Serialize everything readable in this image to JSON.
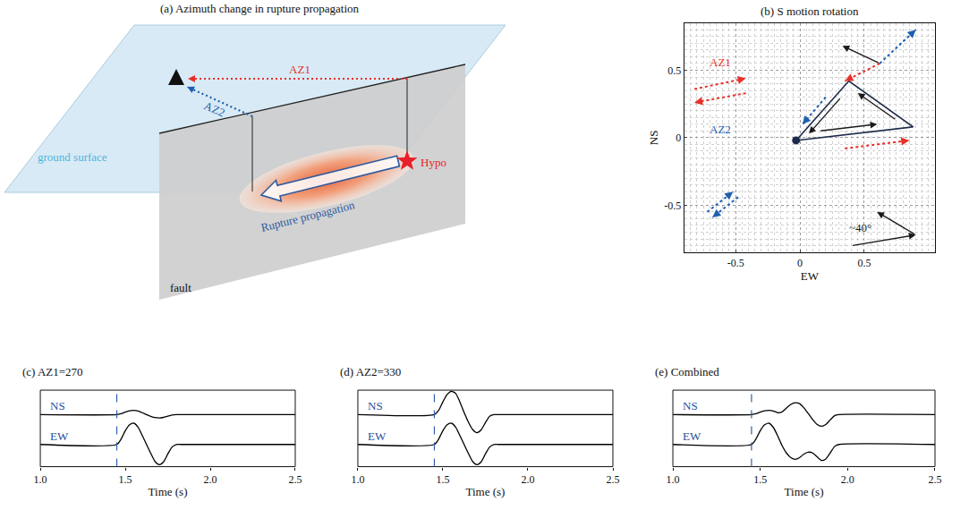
{
  "chart_data": [
    {
      "type": "diagram",
      "title": "(a) Azimuth change in rupture propagation",
      "labels": {
        "surface": "ground surface",
        "fault": "fault",
        "hypocenter": "Hypo",
        "rupture": "Rupture propagation",
        "az1": "AZ1",
        "az2": "AZ2"
      }
    },
    {
      "type": "vector",
      "title": "(b) S motion rotation",
      "x_label": "EW",
      "y_label": "NS",
      "xlim": [
        -0.9,
        1.05
      ],
      "ylim": [
        -0.85,
        0.85
      ],
      "xticks": [
        -0.5,
        0,
        0.5
      ],
      "yticks": [
        -0.5,
        0,
        0.5
      ],
      "grid": true,
      "path": {
        "x": [
          -0.03,
          0.88,
          0.38,
          -0.03
        ],
        "y": [
          -0.02,
          0.08,
          0.42,
          -0.02
        ],
        "color": "#1c2b4a",
        "marker": "circle"
      },
      "arrows": [
        {
          "from": [
            0.15,
            0.05
          ],
          "to": [
            0.6,
            0.1
          ],
          "color": "#1a1a1a",
          "line_style": "solid"
        },
        {
          "from": [
            0.75,
            0.13
          ],
          "to": [
            0.45,
            0.33
          ],
          "color": "#1a1a1a",
          "line_style": "solid"
        },
        {
          "from": [
            0.32,
            0.3
          ],
          "to": [
            0.07,
            0.03
          ],
          "color": "#1a1a1a",
          "line_style": "solid"
        },
        {
          "from": [
            0.62,
            0.55
          ],
          "to": [
            0.33,
            0.68
          ],
          "color": "#1a1a1a",
          "line_style": "solid"
        },
        {
          "from": [
            0.62,
            0.55
          ],
          "to": [
            0.35,
            0.42
          ],
          "color": "#e8302a",
          "line_style": "dotted"
        },
        {
          "from": [
            0.62,
            0.55
          ],
          "to": [
            0.9,
            0.8
          ],
          "color": "#1f5fb0",
          "line_style": "dotted"
        },
        {
          "from": [
            0.2,
            0.3
          ],
          "to": [
            0.02,
            0.1
          ],
          "color": "#1f5fb0",
          "line_style": "dotted"
        },
        {
          "from": [
            0.35,
            -0.08
          ],
          "to": [
            0.85,
            -0.02
          ],
          "color": "#e8302a",
          "line_style": "dotted"
        },
        {
          "from": [
            -0.82,
            0.36
          ],
          "to": [
            -0.42,
            0.44
          ],
          "color": "#e8302a",
          "line_style": "dotted"
        },
        {
          "from": [
            -0.42,
            0.33
          ],
          "to": [
            -0.82,
            0.26
          ],
          "color": "#e8302a",
          "line_style": "dotted"
        },
        {
          "from": [
            -0.72,
            -0.55
          ],
          "to": [
            -0.52,
            -0.4
          ],
          "color": "#1f5fb0",
          "line_style": "dotted"
        },
        {
          "from": [
            -0.48,
            -0.44
          ],
          "to": [
            -0.68,
            -0.59
          ],
          "color": "#1f5fb0",
          "line_style": "dotted"
        },
        {
          "from": [
            0.4,
            -0.8
          ],
          "to": [
            0.9,
            -0.72
          ],
          "color": "#1a1a1a",
          "line_style": "solid"
        },
        {
          "from": [
            0.9,
            -0.72
          ],
          "to": [
            0.6,
            -0.55
          ],
          "color": "#1a1a1a",
          "line_style": "solid"
        }
      ],
      "annotations": [
        {
          "text": "AZ1",
          "x": -0.62,
          "y": 0.56,
          "color": "#e8302a"
        },
        {
          "text": "AZ2",
          "x": -0.62,
          "y": 0.06,
          "color": "#1f5fb0"
        },
        {
          "text": "~40°",
          "x": 0.47,
          "y": -0.67,
          "color": "#1a1a1a"
        }
      ]
    },
    {
      "type": "line",
      "title": "(c) AZ1=270",
      "x_label": "Time (s)",
      "xlim": [
        1.0,
        2.5
      ],
      "xticks": [
        {
          "value": 1.0,
          "label": "1.0"
        },
        {
          "value": 1.5,
          "label": "1.5"
        },
        {
          "value": 2.0,
          "label": "2.0"
        },
        {
          "value": 2.5,
          "label": "2.5"
        }
      ],
      "ylim": [
        -1.2,
        1.2
      ],
      "tick_labels": "x",
      "onset_time": 1.45,
      "x": [
        1.0,
        1.45,
        1.475,
        1.5,
        1.525,
        1.55,
        1.575,
        1.6,
        1.625,
        1.65,
        1.675,
        1.7,
        1.725,
        1.75,
        1.775,
        1.8,
        1.825,
        1.85,
        1.875,
        1.9,
        1.925,
        1.95,
        2.5
      ],
      "series": [
        {
          "name": "NS",
          "color": "#000000",
          "values": [
            0,
            0,
            0.04,
            0.12,
            0.18,
            0.2,
            0.17,
            0.09,
            0,
            -0.08,
            -0.14,
            -0.16,
            -0.13,
            -0.07,
            -0.02,
            0,
            0,
            0,
            0,
            0,
            0,
            0,
            0
          ]
        },
        {
          "name": "EW",
          "color": "#000000",
          "values": [
            0,
            0,
            0.25,
            0.65,
            0.93,
            1.0,
            0.82,
            0.42,
            0,
            -0.42,
            -0.8,
            -0.95,
            -0.82,
            -0.45,
            -0.12,
            0,
            0,
            0,
            0,
            0,
            0,
            0,
            0
          ]
        }
      ]
    },
    {
      "type": "line",
      "title": "(d) AZ2=330",
      "x_label": "Time (s)",
      "xlim": [
        1.0,
        2.5
      ],
      "xticks": [
        {
          "value": 1.0,
          "label": "1.0"
        },
        {
          "value": 1.5,
          "label": "1.5"
        },
        {
          "value": 2.0,
          "label": "2.0"
        },
        {
          "value": 2.5,
          "label": "2.5"
        }
      ],
      "ylim": [
        -1.2,
        1.2
      ],
      "tick_labels": "x",
      "onset_time": 1.45,
      "x": [
        1.0,
        1.45,
        1.475,
        1.5,
        1.525,
        1.55,
        1.575,
        1.6,
        1.625,
        1.65,
        1.675,
        1.7,
        1.725,
        1.75,
        1.775,
        1.8,
        1.825,
        1.85,
        1.875,
        1.9,
        1.925,
        1.95,
        2.5
      ],
      "series": [
        {
          "name": "NS",
          "color": "#000000",
          "values": [
            0,
            0,
            0.2,
            0.6,
            0.95,
            1.1,
            1.0,
            0.6,
            0.1,
            -0.35,
            -0.7,
            -0.85,
            -0.72,
            -0.38,
            -0.08,
            0,
            0,
            0,
            0,
            0,
            0,
            0,
            0
          ]
        },
        {
          "name": "EW",
          "color": "#000000",
          "values": [
            0,
            0,
            0.25,
            0.65,
            0.93,
            1.0,
            0.82,
            0.42,
            0,
            -0.42,
            -0.8,
            -0.95,
            -0.82,
            -0.45,
            -0.12,
            0,
            0,
            0,
            0,
            0,
            0,
            0,
            0
          ]
        }
      ]
    },
    {
      "type": "line",
      "title": "(e) Combined",
      "x_label": "Time (s)",
      "xlim": [
        1.0,
        2.5
      ],
      "xticks": [
        {
          "value": 1.0,
          "label": "1.0"
        },
        {
          "value": 1.5,
          "label": "1.5"
        },
        {
          "value": 2.0,
          "label": "2.0"
        },
        {
          "value": 2.5,
          "label": "2.5"
        }
      ],
      "ylim": [
        -1.2,
        1.2
      ],
      "tick_labels": "x",
      "onset_time": 1.45,
      "x": [
        1.0,
        1.45,
        1.475,
        1.5,
        1.525,
        1.55,
        1.575,
        1.6,
        1.625,
        1.65,
        1.675,
        1.7,
        1.725,
        1.75,
        1.775,
        1.8,
        1.825,
        1.85,
        1.875,
        1.9,
        1.925,
        1.95,
        2.5
      ],
      "series": [
        {
          "name": "NS",
          "color": "#000000",
          "values": [
            0,
            0,
            0.04,
            0.12,
            0.18,
            0.2,
            0.17,
            0.09,
            0.13,
            0.31,
            0.48,
            0.56,
            0.52,
            0.32,
            0.05,
            -0.23,
            -0.46,
            -0.55,
            -0.47,
            -0.25,
            -0.05,
            0,
            0
          ]
        },
        {
          "name": "EW",
          "color": "#000000",
          "values": [
            0,
            0,
            0.25,
            0.65,
            0.93,
            1.0,
            0.8,
            0.4,
            -0.05,
            -0.4,
            -0.62,
            -0.7,
            -0.62,
            -0.45,
            -0.36,
            -0.4,
            -0.58,
            -0.75,
            -0.68,
            -0.4,
            -0.1,
            0,
            0
          ]
        }
      ]
    }
  ]
}
